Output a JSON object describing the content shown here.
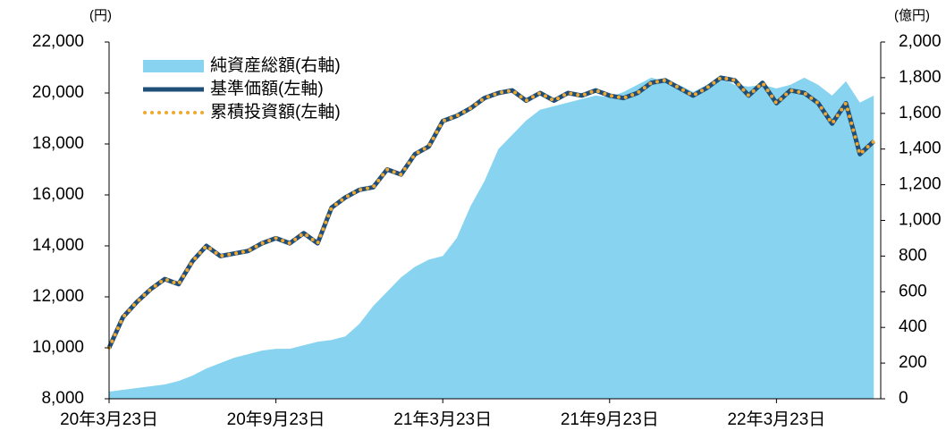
{
  "chart_data": {
    "type": "line",
    "y_axis_label": "(円)",
    "y2_axis_label": "(億円)",
    "categories": [
      "20年3月23日",
      null,
      null,
      null,
      null,
      null,
      null,
      null,
      null,
      null,
      null,
      null,
      "20年9月23日",
      null,
      null,
      null,
      null,
      null,
      null,
      null,
      null,
      null,
      null,
      null,
      "21年3月23日",
      null,
      null,
      null,
      null,
      null,
      null,
      null,
      null,
      null,
      null,
      null,
      "21年9月23日",
      null,
      null,
      null,
      null,
      null,
      null,
      null,
      null,
      null,
      null,
      null,
      "22年3月23日",
      null,
      null,
      null,
      null,
      null,
      null,
      null
    ],
    "series": [
      {
        "name": "純資産総額(右軸)",
        "type": "area",
        "axis": "y2",
        "color": "#87d3f0",
        "values": [
          40,
          50,
          60,
          70,
          80,
          100,
          130,
          170,
          200,
          230,
          250,
          270,
          280,
          280,
          300,
          320,
          330,
          350,
          420,
          520,
          600,
          680,
          740,
          780,
          800,
          900,
          1080,
          1220,
          1400,
          1480,
          1560,
          1620,
          1640,
          1660,
          1680,
          1700,
          1690,
          1720,
          1760,
          1800,
          1780,
          1760,
          1720,
          1760,
          1800,
          1760,
          1750,
          1760,
          1740,
          1760,
          1800,
          1760,
          1700,
          1780,
          1660,
          1700
        ]
      },
      {
        "name": "基準価額(左軸)",
        "type": "line",
        "color": "#1f4e79",
        "values": [
          10000,
          11200,
          11800,
          12300,
          12700,
          12500,
          13400,
          14000,
          13600,
          13700,
          13800,
          14100,
          14300,
          14100,
          14500,
          14100,
          15500,
          15900,
          16200,
          16300,
          17000,
          16800,
          17600,
          17900,
          18900,
          19100,
          19400,
          19800,
          20000,
          20100,
          19700,
          20000,
          19700,
          20000,
          19900,
          20100,
          19900,
          19800,
          20000,
          20400,
          20500,
          20200,
          19900,
          20200,
          20600,
          20500,
          19900,
          20400,
          19600,
          20100,
          20000,
          19600,
          18800,
          19600,
          17600,
          18100
        ]
      },
      {
        "name": "累積投資額(左軸)",
        "type": "dotted",
        "color": "#f0a830",
        "values": [
          10000,
          11200,
          11800,
          12300,
          12700,
          12500,
          13400,
          14000,
          13600,
          13700,
          13800,
          14100,
          14300,
          14100,
          14500,
          14100,
          15500,
          15900,
          16200,
          16300,
          17000,
          16800,
          17600,
          17900,
          18900,
          19100,
          19400,
          19800,
          20000,
          20100,
          19700,
          20000,
          19700,
          20000,
          19900,
          20100,
          19900,
          19800,
          20000,
          20400,
          20500,
          20200,
          19900,
          20200,
          20600,
          20500,
          19900,
          20400,
          19600,
          20100,
          20000,
          19600,
          18800,
          19600,
          17600,
          18100
        ]
      }
    ],
    "ylim": [
      8000,
      22000
    ],
    "yticks": [
      {
        "value": 8000,
        "label": "8,000"
      },
      {
        "value": 10000,
        "label": "10,000"
      },
      {
        "value": 12000,
        "label": "12,000"
      },
      {
        "value": 14000,
        "label": "14,000"
      },
      {
        "value": 16000,
        "label": "16,000"
      },
      {
        "value": 18000,
        "label": "18,000"
      },
      {
        "value": 20000,
        "label": "20,000"
      },
      {
        "value": 22000,
        "label": "22,000"
      }
    ],
    "y2lim": [
      0,
      2000
    ],
    "y2ticks": [
      0,
      200,
      400,
      600,
      800,
      {
        "value": 1000,
        "label": "1,000"
      },
      {
        "value": 1200,
        "label": "1,200"
      },
      {
        "value": 1400,
        "label": "1,400"
      },
      {
        "value": 1600,
        "label": "1,600"
      },
      {
        "value": 1800,
        "label": "1,800"
      },
      {
        "value": 2000,
        "label": "2,000"
      }
    ],
    "legend": "top-left"
  }
}
